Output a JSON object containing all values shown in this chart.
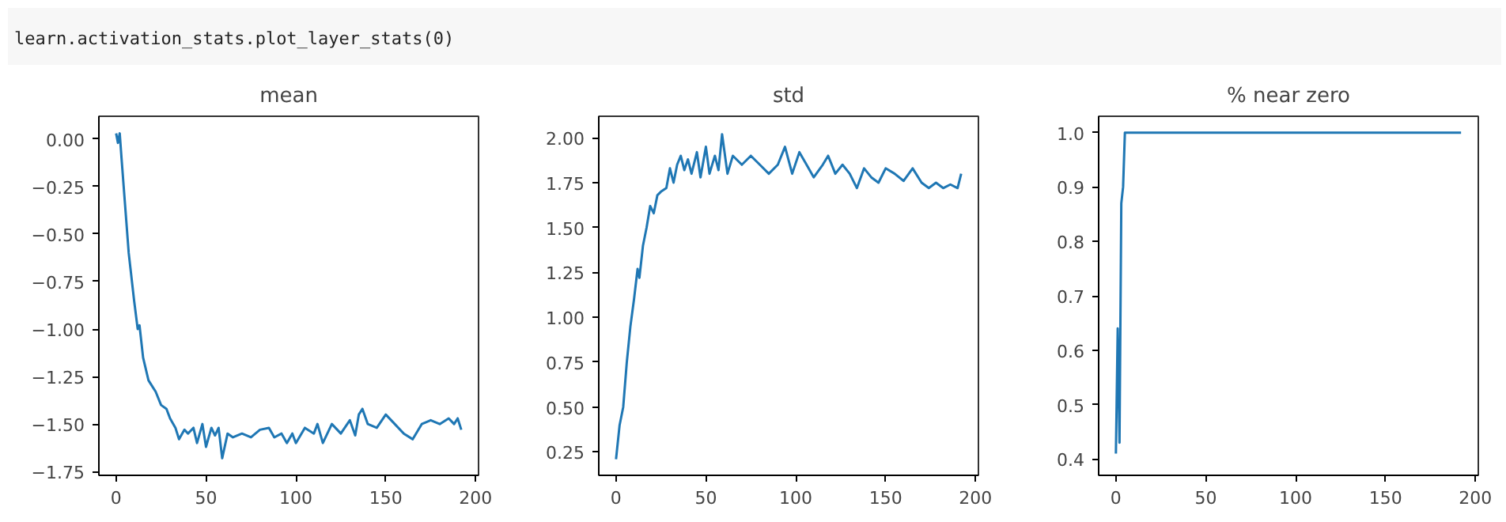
{
  "chart_data": [
    {
      "type": "other",
      "annotations": [
        "learn.activation_stats.plot_layer_stats(0)"
      ]
    },
    {
      "type": "line",
      "title": "mean",
      "grid": false,
      "xlim": [
        -9.6,
        201.6
      ],
      "xticks": [
        0,
        50,
        100,
        150,
        200
      ],
      "ylim": [
        -1.77,
        0.12
      ],
      "yticks": [
        {
          "value": 0,
          "label": "0.00"
        },
        {
          "value": -0.25,
          "label": "−0.25"
        },
        {
          "value": -0.5,
          "label": "−0.50"
        },
        {
          "value": -0.75,
          "label": "−0.75"
        },
        {
          "value": -1,
          "label": "−1.00"
        },
        {
          "value": -1.25,
          "label": "−1.25"
        },
        {
          "value": -1.5,
          "label": "−1.50"
        },
        {
          "value": -1.75,
          "label": "−1.75"
        }
      ],
      "series": [
        {
          "color": "#1f77b4",
          "x": [
            0,
            1,
            2,
            3,
            5,
            7,
            10,
            12,
            13,
            15,
            18,
            20,
            22,
            25,
            28,
            30,
            33,
            35,
            38,
            40,
            43,
            45,
            48,
            50,
            53,
            55,
            57,
            59,
            62,
            65,
            70,
            75,
            80,
            85,
            88,
            92,
            95,
            98,
            100,
            105,
            110,
            112,
            115,
            120,
            125,
            130,
            133,
            135,
            137,
            140,
            145,
            150,
            155,
            160,
            165,
            170,
            175,
            180,
            185,
            188,
            190,
            192
          ],
          "values": [
            0.03,
            -0.02,
            0.03,
            -0.1,
            -0.35,
            -0.6,
            -0.85,
            -1.0,
            -0.98,
            -1.15,
            -1.27,
            -1.3,
            -1.33,
            -1.4,
            -1.42,
            -1.47,
            -1.52,
            -1.58,
            -1.53,
            -1.55,
            -1.52,
            -1.6,
            -1.5,
            -1.62,
            -1.52,
            -1.56,
            -1.52,
            -1.68,
            -1.55,
            -1.57,
            -1.55,
            -1.57,
            -1.53,
            -1.52,
            -1.57,
            -1.55,
            -1.6,
            -1.55,
            -1.6,
            -1.52,
            -1.55,
            -1.5,
            -1.6,
            -1.5,
            -1.55,
            -1.48,
            -1.56,
            -1.45,
            -1.42,
            -1.5,
            -1.52,
            -1.45,
            -1.5,
            -1.55,
            -1.58,
            -1.5,
            -1.48,
            -1.5,
            -1.47,
            -1.5,
            -1.47,
            -1.53
          ]
        }
      ]
    },
    {
      "type": "line",
      "title": "std",
      "grid": false,
      "xlim": [
        -9.6,
        201.6
      ],
      "xticks": [
        0,
        50,
        100,
        150,
        200
      ],
      "ylim": [
        0.12,
        2.12
      ],
      "yticks": [
        {
          "value": 0.25,
          "label": "0.25"
        },
        {
          "value": 0.5,
          "label": "0.50"
        },
        {
          "value": 0.75,
          "label": "0.75"
        },
        {
          "value": 1,
          "label": "1.00"
        },
        {
          "value": 1.25,
          "label": "1.25"
        },
        {
          "value": 1.5,
          "label": "1.50"
        },
        {
          "value": 1.75,
          "label": "1.75"
        },
        {
          "value": 2,
          "label": "2.00"
        }
      ],
      "series": [
        {
          "color": "#1f77b4",
          "x": [
            0,
            2,
            4,
            6,
            8,
            10,
            12,
            13,
            15,
            17,
            19,
            21,
            23,
            25,
            28,
            30,
            32,
            34,
            36,
            38,
            40,
            42,
            45,
            47,
            50,
            52,
            55,
            57,
            59,
            62,
            65,
            70,
            75,
            80,
            85,
            90,
            94,
            98,
            102,
            106,
            110,
            115,
            118,
            122,
            126,
            130,
            134,
            138,
            142,
            146,
            150,
            155,
            160,
            165,
            170,
            174,
            178,
            182,
            186,
            190,
            192
          ],
          "values": [
            0.21,
            0.4,
            0.5,
            0.75,
            0.95,
            1.1,
            1.27,
            1.22,
            1.4,
            1.5,
            1.62,
            1.58,
            1.68,
            1.7,
            1.72,
            1.83,
            1.75,
            1.85,
            1.9,
            1.82,
            1.88,
            1.8,
            1.92,
            1.78,
            1.95,
            1.8,
            1.9,
            1.82,
            2.02,
            1.8,
            1.9,
            1.85,
            1.9,
            1.85,
            1.8,
            1.85,
            1.95,
            1.8,
            1.92,
            1.85,
            1.78,
            1.85,
            1.9,
            1.8,
            1.85,
            1.8,
            1.72,
            1.83,
            1.78,
            1.75,
            1.83,
            1.8,
            1.76,
            1.83,
            1.75,
            1.72,
            1.75,
            1.72,
            1.74,
            1.72,
            1.8
          ]
        }
      ]
    },
    {
      "type": "line",
      "title": "% near zero",
      "grid": false,
      "xlim": [
        -9.6,
        201.6
      ],
      "xticks": [
        0,
        50,
        100,
        150,
        200
      ],
      "ylim": [
        0.37,
        1.03
      ],
      "yticks": [
        {
          "value": 0.4,
          "label": "0.4"
        },
        {
          "value": 0.5,
          "label": "0.5"
        },
        {
          "value": 0.6,
          "label": "0.6"
        },
        {
          "value": 0.7,
          "label": "0.7"
        },
        {
          "value": 0.8,
          "label": "0.8"
        },
        {
          "value": 0.9,
          "label": "0.9"
        },
        {
          "value": 1,
          "label": "1.0"
        }
      ],
      "series": [
        {
          "color": "#1f77b4",
          "x": [
            0,
            1,
            2,
            3,
            4,
            5,
            192
          ],
          "values": [
            0.41,
            0.64,
            0.43,
            0.87,
            0.9,
            1.0,
            1.0
          ]
        }
      ]
    }
  ]
}
